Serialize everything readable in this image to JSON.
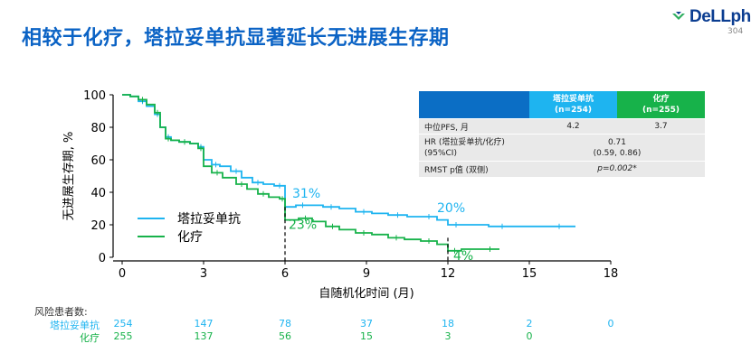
{
  "slide": {
    "title": "相较于化疗，塔拉妥单抗显著延长无进展生存期",
    "logo_text": "DeLLphi",
    "logo_sub": "304"
  },
  "colors": {
    "title": "#0b63c5",
    "tarlatamab": "#1eb4f0",
    "chemo": "#17b24a",
    "table_header_dark": "#0b6ec5"
  },
  "chart_data": {
    "type": "line",
    "xlabel": "自随机化时间 (月)",
    "ylabel": "无进展生存期, %",
    "xlim": [
      0,
      18
    ],
    "ylim": [
      0,
      100
    ],
    "xticks": [
      0,
      3,
      6,
      9,
      12,
      15,
      18
    ],
    "yticks": [
      0,
      20,
      40,
      60,
      80,
      100
    ],
    "grid": false,
    "legend_position": "bottom-left",
    "series": [
      {
        "name": "塔拉妥单抗",
        "color": "#1eb4f0",
        "x": [
          0,
          0.3,
          0.6,
          0.9,
          1.2,
          1.4,
          1.6,
          1.8,
          2.1,
          2.5,
          2.8,
          3.0,
          3.3,
          3.6,
          4.0,
          4.4,
          4.8,
          5.2,
          5.6,
          6.0,
          6.4,
          6.9,
          7.4,
          8.0,
          8.6,
          9.2,
          9.8,
          10.5,
          11.0,
          11.6,
          12.0,
          12.6,
          13.5,
          14.5,
          15.5,
          16.7
        ],
        "y": [
          100,
          99,
          96,
          93,
          88,
          80,
          74,
          72,
          71,
          70,
          68,
          60,
          57,
          56,
          53,
          49,
          46,
          45,
          44,
          31,
          32,
          32,
          31,
          30,
          28,
          27,
          26,
          25,
          25,
          23,
          20,
          20,
          19,
          19,
          19,
          19
        ]
      },
      {
        "name": "化疗",
        "color": "#17b24a",
        "x": [
          0,
          0.3,
          0.6,
          0.9,
          1.2,
          1.4,
          1.6,
          1.8,
          2.1,
          2.5,
          2.8,
          3.0,
          3.3,
          3.7,
          4.2,
          4.6,
          5.0,
          5.4,
          5.8,
          6.0,
          6.5,
          7.0,
          7.5,
          8.0,
          8.6,
          9.2,
          9.8,
          10.4,
          11.0,
          11.6,
          12.0,
          12.5,
          13.2,
          13.9
        ],
        "y": [
          100,
          99,
          97,
          94,
          89,
          80,
          73,
          72,
          71,
          70,
          67,
          56,
          52,
          49,
          45,
          42,
          39,
          37,
          36,
          23,
          24,
          22,
          19,
          17,
          15,
          14,
          12,
          11,
          10,
          8,
          4,
          5,
          5,
          5
        ]
      }
    ],
    "annotations": [
      {
        "text": "31%",
        "x": 6,
        "y": 31,
        "series": "塔拉妥单抗"
      },
      {
        "text": "23%",
        "x": 6,
        "y": 23,
        "series": "化疗"
      },
      {
        "text": "20%",
        "x": 12,
        "y": 20,
        "series": "塔拉妥单抗"
      },
      {
        "text": "4%",
        "x": 12,
        "y": 4,
        "series": "化疗"
      }
    ]
  },
  "table": {
    "headers": [
      "",
      "塔拉妥单抗\n(n=254)",
      "化疗\n(n=255)"
    ],
    "rows": [
      {
        "label": "中位PFS, 月",
        "c1": "4.2",
        "c2": "3.7"
      },
      {
        "label": "HR (塔拉妥单抗/化疗)\n(95%CI)",
        "merged": "0.71\n(0.59, 0.86)"
      },
      {
        "label": "RMST p值 (双侧)",
        "merged": "p=0.002*"
      }
    ]
  },
  "risk_table": {
    "header": "风险患者数:",
    "times": [
      0,
      3,
      6,
      9,
      12,
      15,
      18
    ],
    "rows": [
      {
        "name": "塔拉妥单抗",
        "color": "#1eb4f0",
        "values": [
          "254",
          "147",
          "78",
          "37",
          "18",
          "2",
          "0"
        ]
      },
      {
        "name": "化疗",
        "color": "#17b24a",
        "values": [
          "255",
          "137",
          "56",
          "15",
          "3",
          "0",
          ""
        ]
      }
    ]
  }
}
